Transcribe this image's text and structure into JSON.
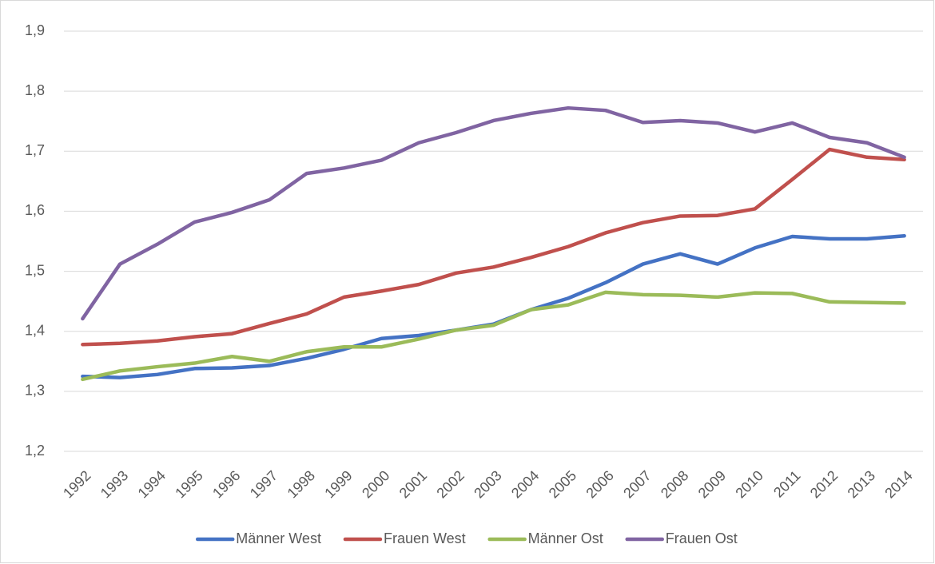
{
  "chart_data": {
    "type": "line",
    "x": [
      "1992",
      "1993",
      "1994",
      "1995",
      "1996",
      "1997",
      "1998",
      "1999",
      "2000",
      "2001",
      "2002",
      "2003",
      "2004",
      "2005",
      "2006",
      "2007",
      "2008",
      "2009",
      "2010",
      "2011",
      "2012",
      "2013",
      "2014"
    ],
    "series": [
      {
        "name": "Männer West",
        "color": "#4472c4",
        "values": [
          1.325,
          1.323,
          1.328,
          1.338,
          1.339,
          1.343,
          1.355,
          1.37,
          1.388,
          1.393,
          1.402,
          1.412,
          1.436,
          1.455,
          1.481,
          1.512,
          1.529,
          1.512,
          1.539,
          1.558,
          1.554,
          1.554,
          1.559
        ]
      },
      {
        "name": "Frauen West",
        "color": "#c0504d",
        "values": [
          1.378,
          1.38,
          1.384,
          1.391,
          1.396,
          1.413,
          1.429,
          1.457,
          1.467,
          1.478,
          1.497,
          1.507,
          1.523,
          1.541,
          1.564,
          1.581,
          1.592,
          1.593,
          1.604,
          1.653,
          1.703,
          1.69,
          1.686
        ]
      },
      {
        "name": "Männer Ost",
        "color": "#9bbb59",
        "values": [
          1.32,
          1.334,
          1.341,
          1.347,
          1.358,
          1.35,
          1.366,
          1.374,
          1.374,
          1.387,
          1.402,
          1.41,
          1.436,
          1.444,
          1.465,
          1.461,
          1.46,
          1.457,
          1.464,
          1.463,
          1.449,
          1.448,
          1.447
        ]
      },
      {
        "name": "Frauen Ost",
        "color": "#8064a2",
        "values": [
          1.421,
          1.512,
          1.545,
          1.582,
          1.598,
          1.619,
          1.663,
          1.672,
          1.685,
          1.714,
          1.731,
          1.751,
          1.763,
          1.772,
          1.768,
          1.748,
          1.751,
          1.747,
          1.732,
          1.747,
          1.723,
          1.714,
          1.69
        ]
      }
    ],
    "ylim": [
      1.2,
      1.9
    ],
    "yticks": [
      {
        "value": 1.2,
        "label": "1,2"
      },
      {
        "value": 1.3,
        "label": "1,3"
      },
      {
        "value": 1.4,
        "label": "1,4"
      },
      {
        "value": 1.5,
        "label": "1,5"
      },
      {
        "value": 1.6,
        "label": "1,6"
      },
      {
        "value": 1.7,
        "label": "1,7"
      },
      {
        "value": 1.8,
        "label": "1,8"
      },
      {
        "value": 1.9,
        "label": "1,9"
      }
    ],
    "grid": true,
    "legend": "bottom"
  }
}
